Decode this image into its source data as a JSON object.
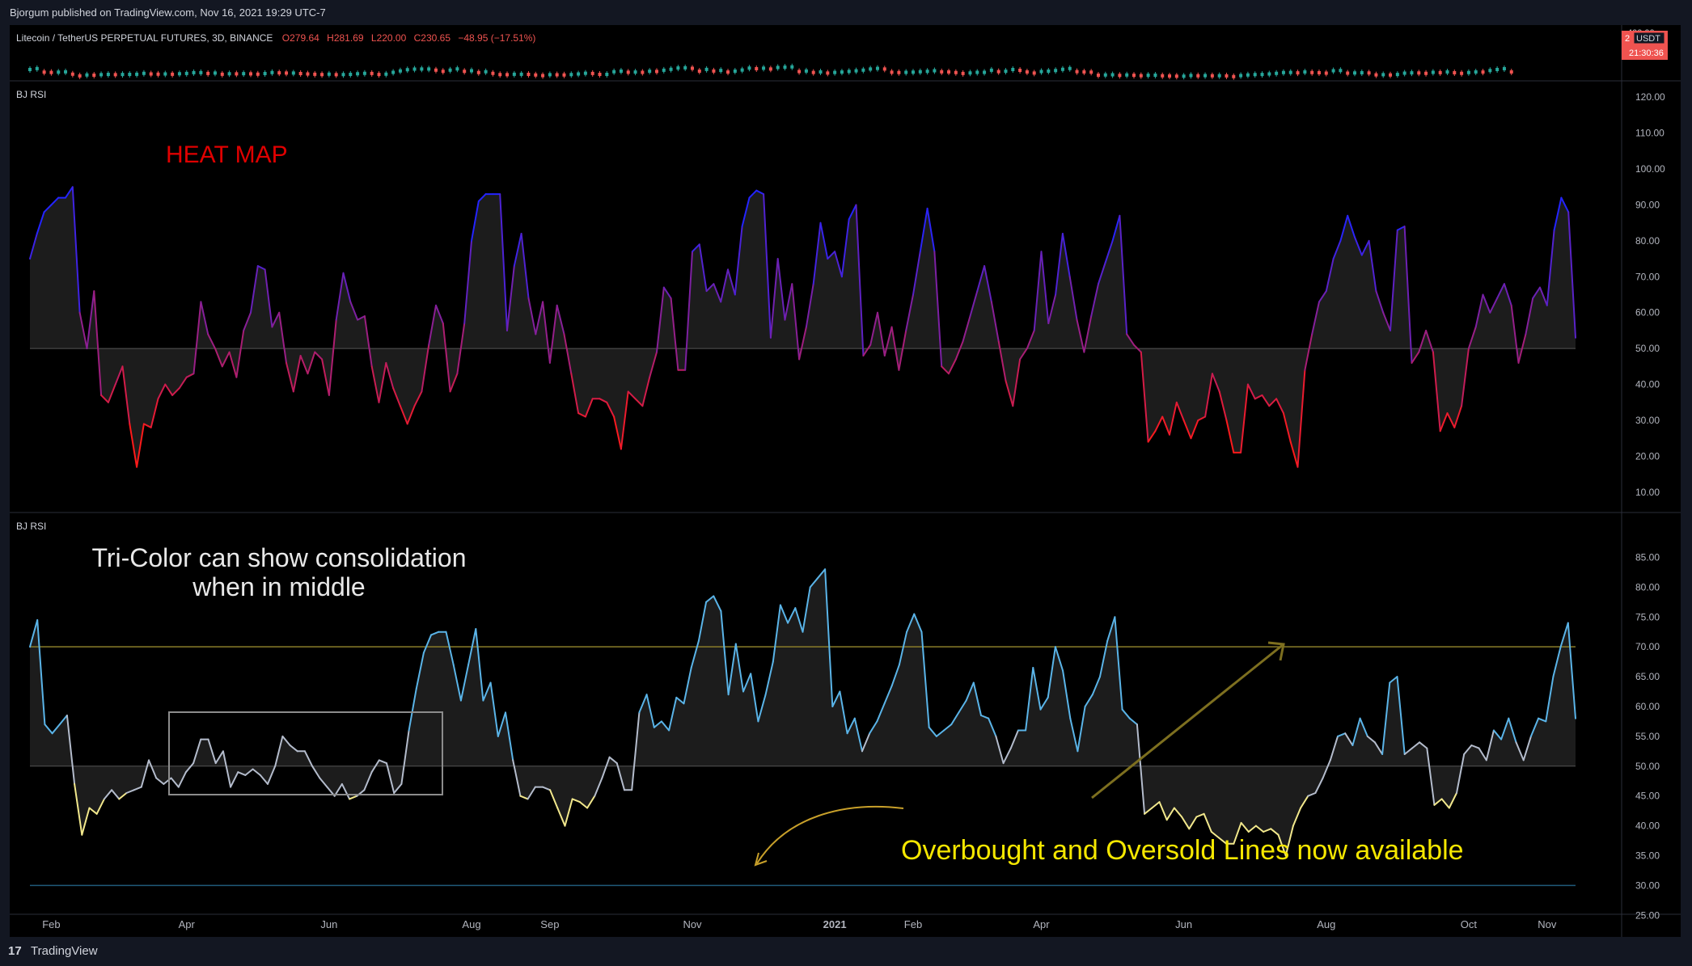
{
  "header": {
    "publisher": "Bjorgum published on TradingView.com, Nov 16, 2021 19:29 UTC-7"
  },
  "footer": {
    "brand": "TradingView",
    "logo_icon": "tradingview-logo-icon"
  },
  "colors": {
    "up": "#26a69a",
    "down": "#ef5350",
    "heat_high": "#2424ff",
    "heat_low": "#ff1a1a",
    "tri_high": "#5ab4e8",
    "tri_mid": "#b4bccc",
    "tri_low": "#f2e88c",
    "ob_line": "#8a7d2a",
    "os_line": "#1f5a7a",
    "annotation_yellow": "#f5e700",
    "annotation_red": "#e00000"
  },
  "price_pane": {
    "title": "Litecoin / TetherUS PERPETUAL FUTURES, 3D, BINANCE",
    "o": "O279.64",
    "h": "H281.69",
    "l": "L220.00",
    "c": "C230.65",
    "chg": "−48.95 (−17.51%)",
    "axis_top": "400.00",
    "currency": "USDT",
    "price_badge": "2",
    "countdown": "21:30:36"
  },
  "time_axis": {
    "labels": [
      {
        "i": 3,
        "text": "Feb"
      },
      {
        "i": 22,
        "text": "Apr"
      },
      {
        "i": 42,
        "text": "Jun"
      },
      {
        "i": 62,
        "text": "Aug"
      },
      {
        "i": 73,
        "text": "Sep"
      },
      {
        "i": 93,
        "text": "Nov"
      },
      {
        "i": 113,
        "text": "2021"
      },
      {
        "i": 124,
        "text": "Feb"
      },
      {
        "i": 142,
        "text": "Apr"
      },
      {
        "i": 162,
        "text": "Jun"
      },
      {
        "i": 182,
        "text": "Aug"
      },
      {
        "i": 202,
        "text": "Oct"
      },
      {
        "i": 213,
        "text": "Nov"
      }
    ]
  },
  "chart_data": [
    {
      "type": "line",
      "title": "BJ RSI",
      "annotation": "HEAT MAP",
      "midline": 50,
      "ylim": [
        5,
        125
      ],
      "ticks": [
        10,
        20,
        30,
        40,
        50,
        60,
        70,
        80,
        90,
        100,
        110,
        120
      ],
      "tick_labels": [
        "10.00",
        "20.00",
        "30.00",
        "40.00",
        "50.00",
        "60.00",
        "70.00",
        "80.00",
        "90.00",
        "100.00",
        "110.00",
        "120.00"
      ],
      "values": [
        75,
        82,
        88,
        90,
        92,
        92,
        95,
        60,
        50,
        66,
        37,
        35,
        40,
        45,
        29,
        17,
        29,
        28,
        36,
        40,
        37,
        39,
        42,
        43,
        63,
        54,
        50,
        45,
        49,
        42,
        55,
        60,
        73,
        72,
        56,
        60,
        46,
        38,
        48,
        43,
        49,
        47,
        37,
        58,
        71,
        63,
        58,
        59,
        45,
        35,
        46,
        39,
        34,
        29,
        34,
        38,
        51,
        62,
        57,
        38,
        43,
        57,
        80,
        91,
        93,
        93,
        93,
        55,
        73,
        82,
        64,
        54,
        63,
        46,
        62,
        54,
        43,
        32,
        31,
        36,
        36,
        35,
        31,
        22,
        38,
        36,
        34,
        42,
        49,
        67,
        64,
        44,
        44,
        77,
        79,
        66,
        68,
        63,
        72,
        65,
        84,
        92,
        94,
        93,
        53,
        75,
        58,
        68,
        47,
        56,
        68,
        85,
        75,
        77,
        70,
        86,
        90,
        48,
        51,
        60,
        48,
        56,
        44,
        55,
        65,
        77,
        89,
        77,
        45,
        43,
        47,
        52,
        59,
        66,
        73,
        63,
        52,
        41,
        34,
        47,
        50,
        55,
        77,
        57,
        65,
        82,
        70,
        58,
        49,
        59,
        68,
        74,
        80,
        87,
        54,
        51,
        49,
        24,
        27,
        31,
        26,
        35,
        30,
        25,
        30,
        31,
        43,
        38,
        30,
        21,
        21,
        40,
        36,
        37,
        34,
        36,
        32,
        24,
        17,
        44,
        54,
        63,
        66,
        75,
        80,
        87,
        81,
        76,
        80,
        66,
        60,
        55,
        83,
        84,
        46,
        49,
        55,
        49,
        27,
        32,
        28,
        34,
        50,
        56,
        65,
        60,
        64,
        68,
        62,
        46,
        54,
        64,
        67,
        62,
        83,
        92,
        88,
        53
      ]
    },
    {
      "type": "line",
      "title": "BJ RSI",
      "annotations": [
        "Tri-Color can show consolidation",
        "when in middle",
        "Overbought and Oversold Lines now available"
      ],
      "overbought": 70,
      "midline": 50,
      "oversold": 30,
      "ylim": [
        24.5,
        87.5
      ],
      "ticks": [
        25,
        30,
        35,
        40,
        45,
        50,
        55,
        60,
        65,
        70,
        75,
        80,
        85
      ],
      "tick_labels": [
        "25.00",
        "30.00",
        "35.00",
        "40.00",
        "45.00",
        "50.00",
        "55.00",
        "60.00",
        "65.00",
        "70.00",
        "75.00",
        "80.00",
        "85.00"
      ],
      "values": [
        70,
        74.5,
        57,
        55.5,
        57,
        58.5,
        47,
        38.5,
        43,
        42,
        44.5,
        46,
        44.5,
        45.5,
        46,
        46.5,
        51,
        48,
        47,
        48,
        46.5,
        49,
        50.5,
        54.5,
        54.5,
        50.5,
        52.5,
        46.5,
        49,
        48.5,
        49.5,
        48.5,
        47,
        50,
        55,
        53.5,
        52.5,
        52.5,
        50,
        48,
        46.5,
        45,
        47,
        44.5,
        45,
        46,
        49,
        51,
        50.5,
        45.5,
        47,
        56,
        63,
        69,
        72,
        72.5,
        72.5,
        67,
        61,
        67,
        73,
        61,
        64,
        55,
        59,
        51,
        45,
        44.5,
        46.5,
        46.5,
        46,
        43,
        40,
        44.5,
        44,
        43,
        45,
        48,
        51.5,
        50.5,
        46,
        46,
        59,
        62,
        56.5,
        57.5,
        56,
        61.5,
        60.5,
        66.5,
        71,
        77.5,
        78.5,
        76,
        62,
        70.5,
        62.5,
        65.5,
        57.5,
        62,
        67.5,
        77,
        74,
        76.5,
        72.5,
        80,
        81.5,
        83,
        60,
        62.5,
        55.5,
        58,
        52.5,
        55.5,
        57.5,
        60.5,
        63.5,
        67,
        72.5,
        75.5,
        72.5,
        56.5,
        55,
        56,
        57,
        59,
        61,
        64,
        58.5,
        58,
        55,
        50.5,
        53,
        56,
        56,
        66.5,
        59.5,
        61.5,
        70,
        66,
        58,
        52.5,
        60,
        62,
        65,
        71,
        75,
        59.5,
        58,
        57,
        42,
        43,
        44,
        41,
        43,
        41.5,
        39.5,
        41.5,
        42,
        39,
        38,
        37,
        37,
        40.5,
        39,
        40,
        39,
        39.5,
        38.5,
        35,
        40,
        43,
        45,
        45.5,
        48,
        51,
        55,
        55.5,
        53.5,
        58,
        55,
        54,
        52,
        64,
        65,
        52,
        53,
        54,
        53,
        43.5,
        44.5,
        43,
        45.5,
        52,
        53.5,
        53,
        51,
        56,
        54.5,
        58,
        54,
        51,
        55,
        58,
        57.5,
        65,
        70,
        74,
        58
      ]
    }
  ]
}
